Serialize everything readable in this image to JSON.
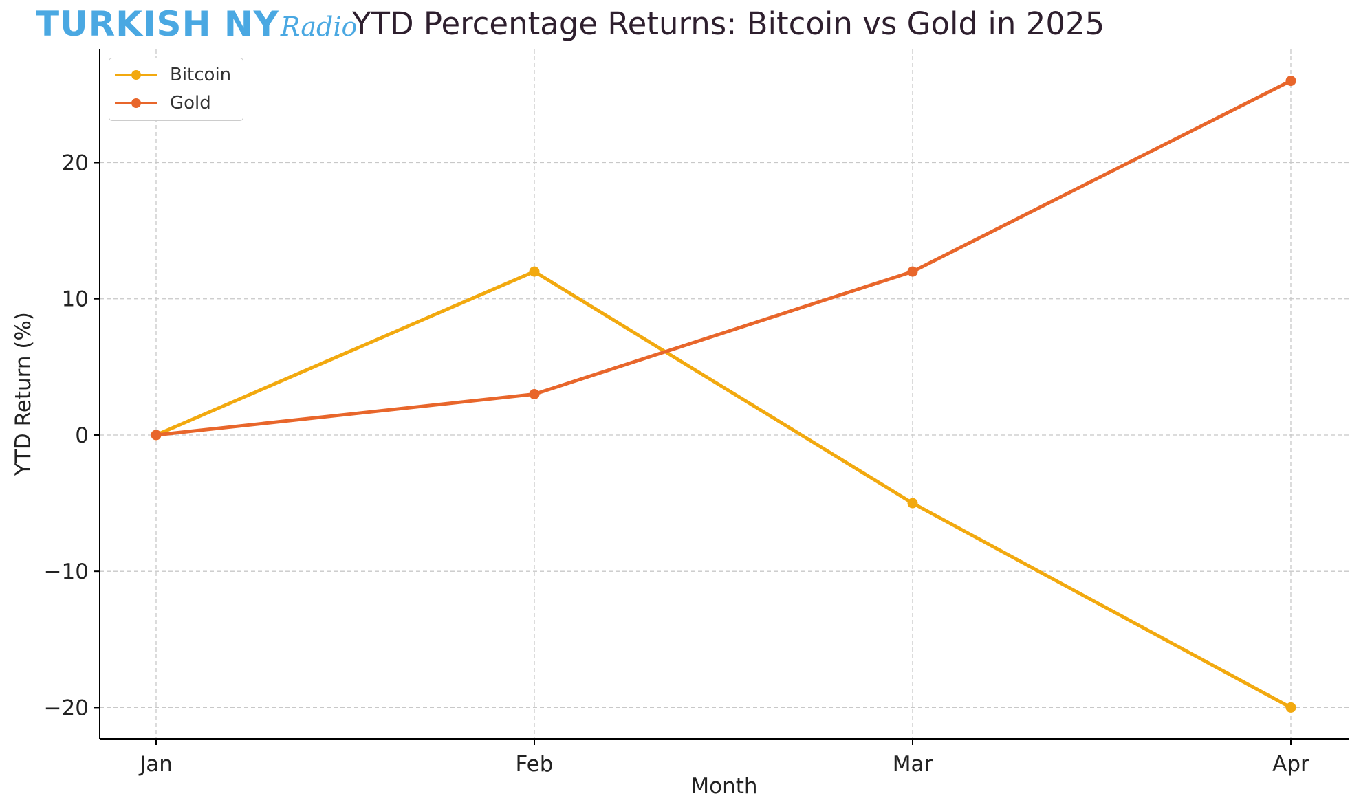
{
  "logo": {
    "main_text": "TURKISH NY",
    "script_text": "Radio",
    "color": "#4aa8e2"
  },
  "chart_data": {
    "type": "line",
    "title": "YTD Percentage Returns: Bitcoin vs Gold in 2025",
    "xlabel": "Month",
    "ylabel": "YTD Return (%)",
    "categories": [
      "Jan",
      "Feb",
      "Mar",
      "Apr"
    ],
    "series": [
      {
        "name": "Bitcoin",
        "values": [
          0,
          12,
          -5,
          -20
        ],
        "color": "#f2a90f"
      },
      {
        "name": "Gold",
        "values": [
          0,
          3,
          12,
          26
        ],
        "color": "#e8662b"
      }
    ],
    "ylim": [
      -22.3,
      28.3
    ],
    "yticks": [
      -20,
      -10,
      0,
      10,
      20
    ],
    "ytick_labels": [
      "−20",
      "−10",
      "0",
      "10",
      "20"
    ],
    "grid": true,
    "legend_position": "top-left"
  }
}
